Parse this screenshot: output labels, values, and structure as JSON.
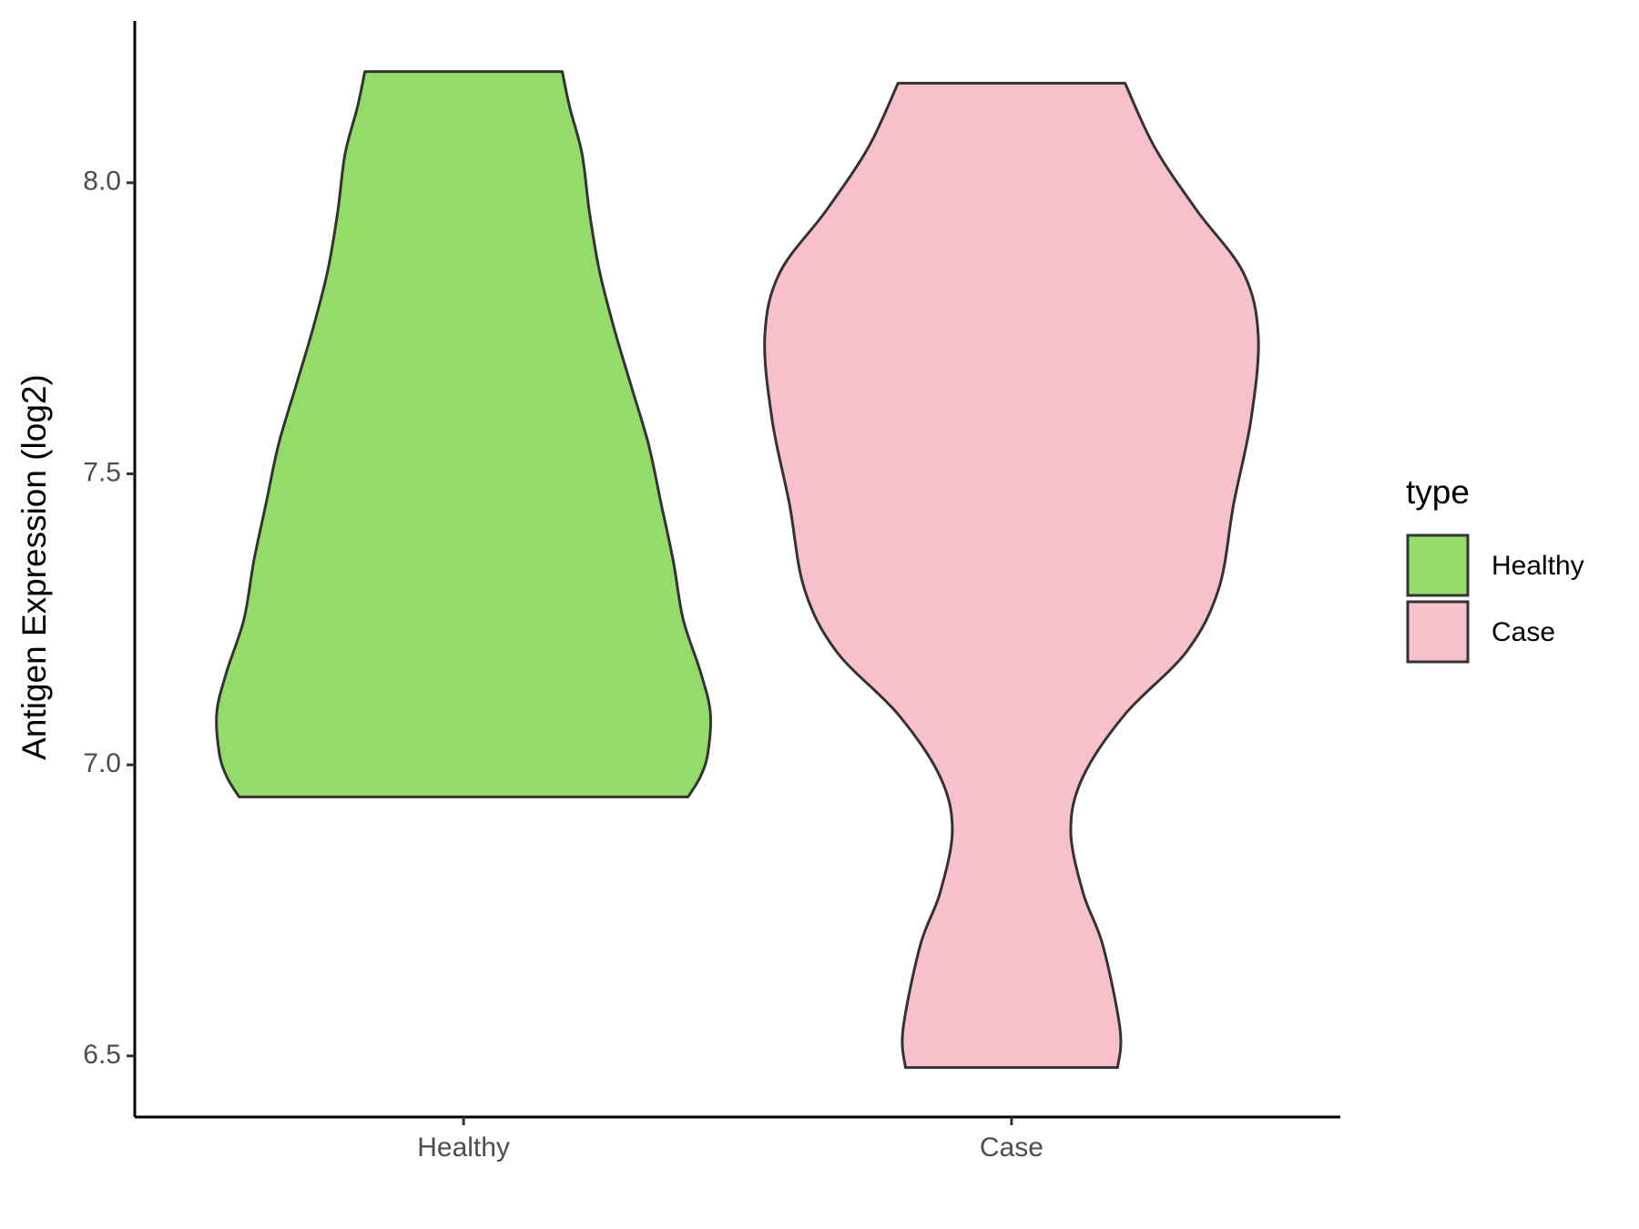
{
  "chart_data": {
    "type": "violin",
    "y_label": "Antigen Expression (log2)",
    "categories": [
      "Healthy",
      "Case"
    ],
    "legend_title": "type",
    "series": [
      {
        "name": "Healthy",
        "color": "#94dc6a",
        "y": [
          6.945,
          6.98,
          7.02,
          7.09,
          7.16,
          7.25,
          7.35,
          7.45,
          7.55,
          7.65,
          7.75,
          7.85,
          7.95,
          8.05,
          8.13,
          8.191
        ],
        "width": [
          0.91,
          0.96,
          0.99,
          1.0,
          0.96,
          0.89,
          0.85,
          0.8,
          0.75,
          0.68,
          0.61,
          0.55,
          0.51,
          0.48,
          0.43,
          0.4
        ]
      },
      {
        "name": "Case",
        "color": "#f8c0cb",
        "y": [
          6.48,
          6.545,
          6.69,
          6.78,
          6.888,
          6.98,
          7.087,
          7.195,
          7.303,
          7.448,
          7.592,
          7.736,
          7.845,
          7.953,
          8.061,
          8.171
        ],
        "width": [
          0.43,
          0.44,
          0.37,
          0.29,
          0.24,
          0.29,
          0.46,
          0.71,
          0.84,
          0.9,
          0.97,
          1.0,
          0.94,
          0.75,
          0.58,
          0.46
        ]
      }
    ],
    "ylim": [
      6.395,
      8.278
    ],
    "yticks": [
      {
        "value": 6.5,
        "label": "6.5"
      },
      {
        "value": 7,
        "label": "7.0"
      },
      {
        "value": 7.5,
        "label": "7.5"
      },
      {
        "value": 8,
        "label": "8.0"
      }
    ],
    "legend": "right"
  }
}
